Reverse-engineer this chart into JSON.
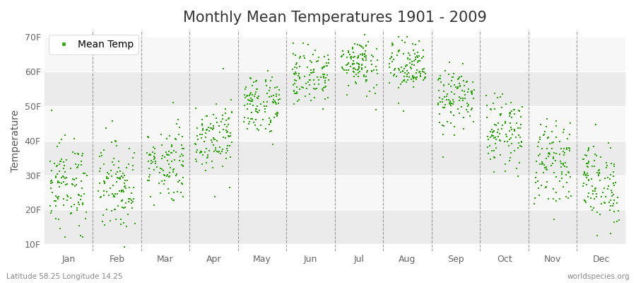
{
  "title": "Monthly Mean Temperatures 1901 - 2009",
  "ylabel": "Temperature",
  "xlabel_labels": [
    "Jan",
    "Feb",
    "Mar",
    "Apr",
    "May",
    "Jun",
    "Jul",
    "Aug",
    "Sep",
    "Oct",
    "Nov",
    "Dec"
  ],
  "ytick_labels": [
    "10F",
    "20F",
    "30F",
    "40F",
    "50F",
    "60F",
    "70F"
  ],
  "ytick_values": [
    10,
    20,
    30,
    40,
    50,
    60,
    70
  ],
  "ylim": [
    8,
    72
  ],
  "xlim": [
    0,
    12
  ],
  "dot_color": "#22aa00",
  "bg_color": "#ffffff",
  "plot_bg_color": "#ffffff",
  "stripe_colors": [
    "#ebebeb",
    "#f7f7f7"
  ],
  "vline_color": "#999999",
  "title_fontsize": 15,
  "label_fontsize": 10,
  "tick_fontsize": 9,
  "footer_left": "Latitude 58.25 Longitude 14.25",
  "footer_right": "worldspecies.org",
  "legend_label": "Mean Temp",
  "n_years": 109,
  "monthly_means_f": [
    27.5,
    27.0,
    33.5,
    41.5,
    50.5,
    58.5,
    62.5,
    61.0,
    52.0,
    42.5,
    34.0,
    27.5
  ],
  "monthly_stds_f": [
    6.5,
    6.5,
    5.5,
    5.0,
    4.5,
    4.0,
    4.0,
    4.0,
    4.5,
    5.0,
    5.5,
    6.0
  ]
}
